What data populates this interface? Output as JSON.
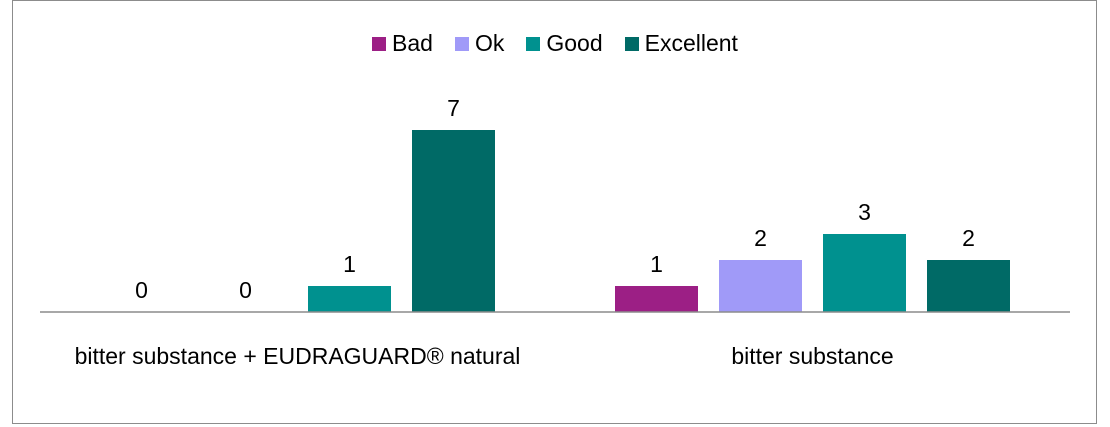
{
  "chart_data": {
    "type": "bar",
    "categories": [
      "bitter substance + EUDRAGUARD® natural",
      "bitter substance"
    ],
    "series": [
      {
        "name": "Bad",
        "color": "#9c1f85",
        "values": [
          0,
          1
        ]
      },
      {
        "name": "Ok",
        "color": "#a09af8",
        "values": [
          0,
          2
        ]
      },
      {
        "name": "Good",
        "color": "#00918f",
        "values": [
          1,
          3
        ]
      },
      {
        "name": "Excellent",
        "color": "#006a66",
        "values": [
          7,
          2
        ]
      }
    ],
    "legend": "top"
  }
}
